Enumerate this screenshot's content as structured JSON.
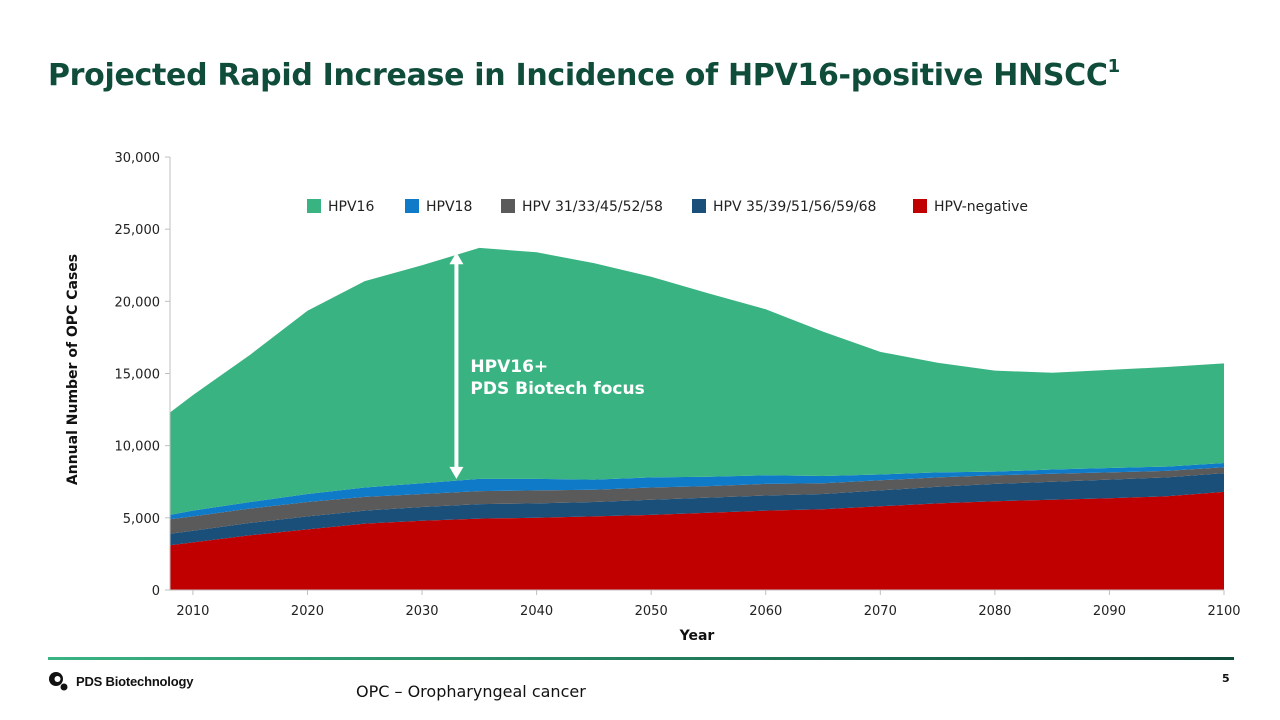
{
  "slide": {
    "title_main": "Projected Rapid Increase in Incidence of HPV16-positive HNSCC",
    "title_superscript": "1",
    "company": "PDS Biotechnology",
    "footnote": "OPC – Oropharyngeal cancer",
    "page_number": "5"
  },
  "chart_data": {
    "type": "area",
    "stacked": true,
    "title": "",
    "xlabel": "Year",
    "ylabel": "Annual Number of OPC Cases",
    "xlim": [
      2008,
      2100
    ],
    "ylim": [
      0,
      30000
    ],
    "x_ticks": [
      2010,
      2020,
      2030,
      2040,
      2050,
      2060,
      2070,
      2080,
      2090,
      2100
    ],
    "x_tick_labels": [
      "2010",
      "2020",
      "2030",
      "2040",
      "2050",
      "2060",
      "2070",
      "2080",
      "2090",
      "2100"
    ],
    "y_ticks": [
      0,
      5000,
      10000,
      15000,
      20000,
      25000,
      30000
    ],
    "y_tick_labels": [
      "0",
      "5,000",
      "10,000",
      "15,000",
      "20,000",
      "25,000",
      "30,000"
    ],
    "grid": false,
    "legend": "top",
    "x": [
      2008,
      2010,
      2015,
      2020,
      2025,
      2030,
      2035,
      2040,
      2045,
      2050,
      2055,
      2060,
      2065,
      2070,
      2075,
      2080,
      2085,
      2090,
      2095,
      2100
    ],
    "series": [
      {
        "name": "HPV-negative",
        "color": "#c00000",
        "values": [
          3100,
          3300,
          3800,
          4200,
          4600,
          4800,
          4950,
          5000,
          5100,
          5200,
          5350,
          5500,
          5600,
          5800,
          6000,
          6150,
          6250,
          6350,
          6500,
          6800
        ]
      },
      {
        "name": "HPV 35/39/51/56/59/68",
        "color": "#1a4f7a",
        "values": [
          800,
          800,
          850,
          900,
          900,
          950,
          1000,
          1000,
          1000,
          1050,
          1050,
          1050,
          1050,
          1100,
          1150,
          1200,
          1250,
          1300,
          1300,
          1300
        ]
      },
      {
        "name": "HPV 31/33/45/52/58",
        "color": "#5a5a5a",
        "values": [
          1000,
          1000,
          1000,
          1000,
          950,
          900,
          900,
          900,
          850,
          850,
          800,
          800,
          750,
          700,
          650,
          600,
          550,
          500,
          450,
          400
        ]
      },
      {
        "name": "HPV18",
        "color": "#0f7ac8",
        "values": [
          300,
          400,
          450,
          550,
          650,
          750,
          850,
          800,
          700,
          700,
          650,
          600,
          500,
          400,
          350,
          250,
          300,
          300,
          300,
          300
        ]
      },
      {
        "name": "HPV16",
        "color": "#3ab383",
        "values": [
          7100,
          8000,
          10200,
          12700,
          14300,
          15100,
          16000,
          15700,
          15000,
          13900,
          12700,
          11500,
          10000,
          8500,
          7600,
          7000,
          6700,
          6800,
          6900,
          6900
        ]
      }
    ],
    "annotation": {
      "lines": [
        "HPV16+",
        "PDS Biotech focus"
      ],
      "arrow_x": 2033,
      "arrow_y_from": 7700,
      "arrow_y_to": 23400
    }
  }
}
